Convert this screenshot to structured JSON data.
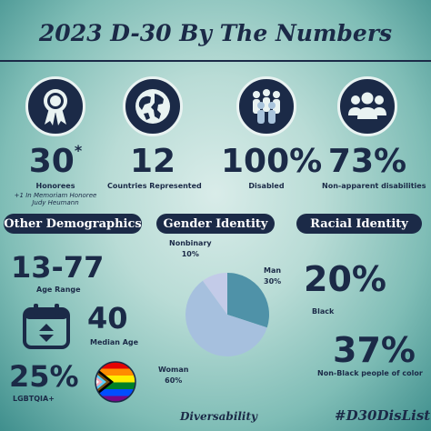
{
  "title": "2023 D-30 By The Numbers",
  "stats": [
    {
      "icon": "award-ribbon-icon",
      "value": "30",
      "mark": "*",
      "label": "Honorees",
      "note_lines": [
        "+1 In Memoriam Honoree",
        "Judy Heumann"
      ]
    },
    {
      "icon": "globe-icon",
      "value": "12",
      "label": "Countries Represented"
    },
    {
      "icon": "people-group-icon",
      "value": "100%",
      "label": "Disabled"
    },
    {
      "icon": "three-people-icon",
      "value": "73%",
      "label": "Non-apparent disabilities"
    }
  ],
  "sections": {
    "other_demographics": "Other Demographics",
    "gender_identity": "Gender Identity",
    "racial_identity": "Racial Identity"
  },
  "demographics": {
    "age_range_value": "13-77",
    "age_range_label": "Age Range",
    "median_age_value": "40",
    "median_age_label": "Median Age",
    "lgbtqia_value": "25%",
    "lgbtqia_label": "LGBTQIA+",
    "calendar_icon": "calendar-icon",
    "flag_icon": "progress-pride-flag-icon"
  },
  "chart_data": {
    "type": "pie",
    "categories": [
      "Man",
      "Woman",
      "Nonbinary"
    ],
    "values": [
      30,
      60,
      10
    ],
    "labels": [
      "30%",
      "60%",
      "10%"
    ],
    "colors": [
      "#4f92a8",
      "#a6c0de",
      "#c3cbe8"
    ]
  },
  "racial": [
    {
      "value": "20%",
      "label": "Black"
    },
    {
      "value": "37%",
      "label": "Non-Black people of color"
    }
  ],
  "footer": {
    "brand": "Diversability",
    "hashtag": "#D30DisList"
  }
}
